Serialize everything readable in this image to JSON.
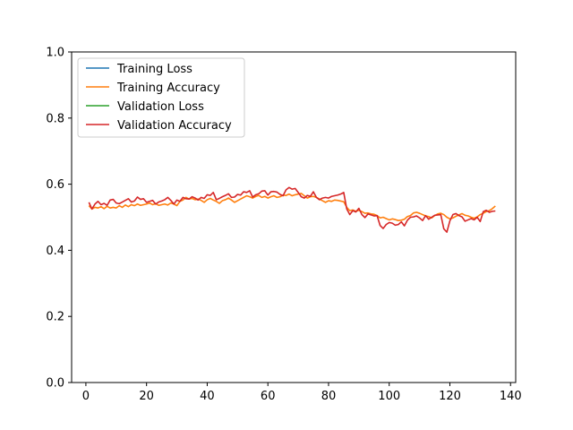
{
  "chart_data": {
    "type": "line",
    "title": "",
    "xlabel": "",
    "ylabel": "",
    "xlim": [
      -4.7,
      141.7
    ],
    "ylim": [
      0.0,
      1.0
    ],
    "xticks": [
      0,
      20,
      40,
      60,
      80,
      100,
      120,
      140
    ],
    "yticks": [
      0.0,
      0.2,
      0.4,
      0.6,
      0.8,
      1.0
    ],
    "xtick_labels": [
      "0",
      "20",
      "40",
      "60",
      "80",
      "100",
      "120",
      "140"
    ],
    "ytick_labels": [
      "0.0",
      "0.2",
      "0.4",
      "0.6",
      "0.8",
      "1.0"
    ],
    "grid": false,
    "legend": {
      "position": "top-left"
    },
    "series": [
      {
        "name": "Training Loss",
        "color": "#1f77b4",
        "x": [],
        "y": []
      },
      {
        "name": "Training Accuracy",
        "color": "#ff7f0e",
        "x": [
          1,
          2,
          3,
          4,
          5,
          6,
          7,
          8,
          9,
          10,
          11,
          12,
          13,
          14,
          15,
          16,
          17,
          18,
          19,
          20,
          21,
          22,
          23,
          24,
          25,
          26,
          27,
          28,
          29,
          30,
          31,
          32,
          33,
          34,
          35,
          36,
          37,
          38,
          39,
          40,
          41,
          42,
          43,
          44,
          45,
          46,
          47,
          48,
          49,
          50,
          51,
          52,
          53,
          54,
          55,
          56,
          57,
          58,
          59,
          60,
          61,
          62,
          63,
          64,
          65,
          66,
          67,
          68,
          69,
          70,
          71,
          72,
          73,
          74,
          75,
          76,
          77,
          78,
          79,
          80,
          81,
          82,
          83,
          84,
          85,
          86,
          87,
          88,
          89,
          90,
          91,
          92,
          93,
          94,
          95,
          96,
          97,
          98,
          99,
          100,
          101,
          102,
          103,
          104,
          105,
          106,
          107,
          108,
          109,
          110,
          111,
          112,
          113,
          114,
          115,
          116,
          117,
          118,
          119,
          120,
          121,
          122,
          123,
          124,
          125,
          126,
          127,
          128,
          129,
          130,
          131,
          132,
          133,
          134,
          135
        ],
        "y": [
          0.535,
          0.525,
          0.53,
          0.528,
          0.532,
          0.526,
          0.533,
          0.528,
          0.53,
          0.528,
          0.535,
          0.53,
          0.537,
          0.532,
          0.538,
          0.535,
          0.54,
          0.536,
          0.538,
          0.54,
          0.543,
          0.538,
          0.541,
          0.536,
          0.538,
          0.54,
          0.537,
          0.543,
          0.54,
          0.535,
          0.548,
          0.552,
          0.56,
          0.555,
          0.557,
          0.553,
          0.555,
          0.551,
          0.545,
          0.553,
          0.557,
          0.552,
          0.548,
          0.542,
          0.55,
          0.553,
          0.558,
          0.552,
          0.545,
          0.55,
          0.555,
          0.56,
          0.565,
          0.562,
          0.558,
          0.563,
          0.566,
          0.56,
          0.563,
          0.558,
          0.562,
          0.565,
          0.56,
          0.562,
          0.567,
          0.566,
          0.57,
          0.565,
          0.568,
          0.57,
          0.572,
          0.565,
          0.558,
          0.562,
          0.563,
          0.56,
          0.555,
          0.55,
          0.545,
          0.55,
          0.548,
          0.552,
          0.551,
          0.549,
          0.547,
          0.53,
          0.52,
          0.522,
          0.518,
          0.521,
          0.517,
          0.512,
          0.513,
          0.51,
          0.509,
          0.505,
          0.498,
          0.5,
          0.496,
          0.492,
          0.495,
          0.493,
          0.49,
          0.491,
          0.494,
          0.502,
          0.505,
          0.513,
          0.515,
          0.512,
          0.508,
          0.504,
          0.502,
          0.498,
          0.505,
          0.51,
          0.512,
          0.508,
          0.5,
          0.495,
          0.498,
          0.503,
          0.507,
          0.511,
          0.506,
          0.504,
          0.5,
          0.497,
          0.501,
          0.508,
          0.512,
          0.517,
          0.52,
          0.526,
          0.534
        ]
      },
      {
        "name": "Validation Loss",
        "color": "#2ca02c",
        "x": [],
        "y": []
      },
      {
        "name": "Validation Accuracy",
        "color": "#d62728",
        "x": [
          1,
          2,
          3,
          4,
          5,
          6,
          7,
          8,
          9,
          10,
          11,
          12,
          13,
          14,
          15,
          16,
          17,
          18,
          19,
          20,
          21,
          22,
          23,
          24,
          25,
          26,
          27,
          28,
          29,
          30,
          31,
          32,
          33,
          34,
          35,
          36,
          37,
          38,
          39,
          40,
          41,
          42,
          43,
          44,
          45,
          46,
          47,
          48,
          49,
          50,
          51,
          52,
          53,
          54,
          55,
          56,
          57,
          58,
          59,
          60,
          61,
          62,
          63,
          64,
          65,
          66,
          67,
          68,
          69,
          70,
          71,
          72,
          73,
          74,
          75,
          76,
          77,
          78,
          79,
          80,
          81,
          82,
          83,
          84,
          85,
          86,
          87,
          88,
          89,
          90,
          91,
          92,
          93,
          94,
          95,
          96,
          97,
          98,
          99,
          100,
          101,
          102,
          103,
          104,
          105,
          106,
          107,
          108,
          109,
          110,
          111,
          112,
          113,
          114,
          115,
          116,
          117,
          118,
          119,
          120,
          121,
          122,
          123,
          124,
          125,
          126,
          127,
          128,
          129,
          130,
          131,
          132,
          133,
          134,
          135
        ],
        "y": [
          0.545,
          0.525,
          0.54,
          0.548,
          0.538,
          0.542,
          0.536,
          0.552,
          0.554,
          0.543,
          0.541,
          0.546,
          0.551,
          0.556,
          0.546,
          0.549,
          0.561,
          0.554,
          0.556,
          0.545,
          0.548,
          0.551,
          0.54,
          0.546,
          0.549,
          0.553,
          0.56,
          0.551,
          0.54,
          0.552,
          0.548,
          0.56,
          0.556,
          0.555,
          0.562,
          0.558,
          0.552,
          0.56,
          0.557,
          0.568,
          0.566,
          0.575,
          0.553,
          0.557,
          0.562,
          0.566,
          0.571,
          0.56,
          0.561,
          0.569,
          0.567,
          0.577,
          0.575,
          0.58,
          0.561,
          0.568,
          0.571,
          0.579,
          0.58,
          0.567,
          0.577,
          0.578,
          0.576,
          0.569,
          0.565,
          0.583,
          0.59,
          0.585,
          0.587,
          0.575,
          0.562,
          0.558,
          0.566,
          0.563,
          0.577,
          0.56,
          0.553,
          0.558,
          0.56,
          0.558,
          0.563,
          0.565,
          0.567,
          0.57,
          0.575,
          0.525,
          0.508,
          0.52,
          0.516,
          0.527,
          0.508,
          0.499,
          0.51,
          0.507,
          0.504,
          0.505,
          0.475,
          0.466,
          0.478,
          0.484,
          0.482,
          0.476,
          0.478,
          0.486,
          0.474,
          0.491,
          0.5,
          0.501,
          0.504,
          0.498,
          0.49,
          0.505,
          0.494,
          0.5,
          0.506,
          0.507,
          0.508,
          0.465,
          0.455,
          0.489,
          0.508,
          0.511,
          0.505,
          0.501,
          0.488,
          0.492,
          0.496,
          0.492,
          0.5,
          0.487,
          0.517,
          0.521,
          0.515,
          0.518,
          0.519
        ]
      }
    ]
  }
}
